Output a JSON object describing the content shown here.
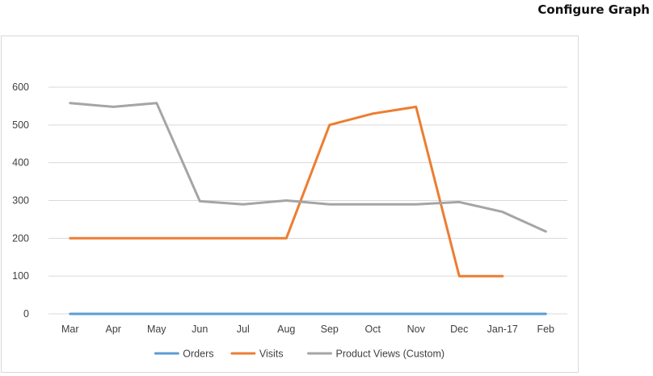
{
  "header": {
    "configure_label": "Configure Graph"
  },
  "chart_data": {
    "type": "line",
    "title": "",
    "xlabel": "",
    "ylabel": "",
    "categories": [
      "Mar",
      "Apr",
      "May",
      "Jun",
      "Jul",
      "Aug",
      "Sep",
      "Oct",
      "Nov",
      "Dec",
      "Jan-17",
      "Feb"
    ],
    "ylim": [
      0,
      600
    ],
    "yticks": [
      0,
      100,
      200,
      300,
      400,
      500,
      600
    ],
    "grid": true,
    "legend_position": "bottom",
    "series": [
      {
        "name": "Orders",
        "color": "#5b9bd5",
        "values": [
          0,
          0,
          0,
          0,
          0,
          0,
          0,
          0,
          0,
          0,
          0,
          0
        ]
      },
      {
        "name": "Visits",
        "color": "#ed7d31",
        "values": [
          200,
          200,
          200,
          200,
          200,
          200,
          500,
          530,
          548,
          100,
          100,
          null
        ]
      },
      {
        "name": "Product Views (Custom)",
        "color": "#a5a5a5",
        "values": [
          558,
          548,
          558,
          298,
          290,
          300,
          290,
          290,
          290,
          296,
          270,
          218
        ]
      }
    ]
  }
}
